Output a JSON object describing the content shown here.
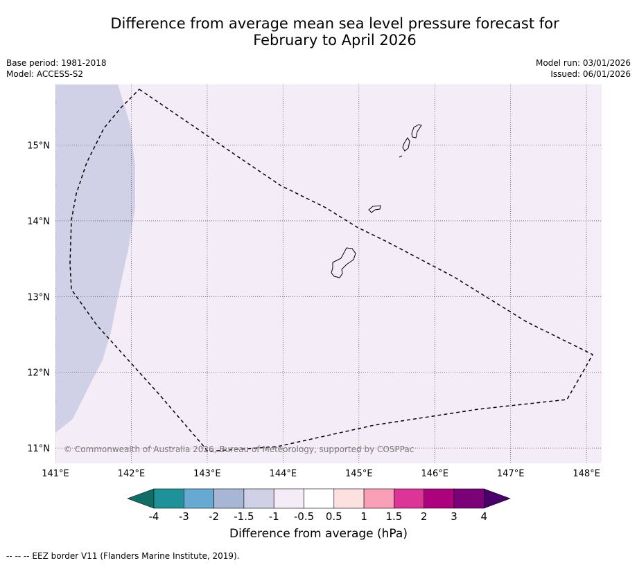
{
  "title": {
    "line1": "Difference from average mean sea level pressure forecast for",
    "line2": "February to April 2026"
  },
  "meta": {
    "base_period": "Base period: 1981-2018",
    "model": "Model: ACCESS-S2",
    "model_run": "Model run: 03/01/2026",
    "issued": "Issued: 06/01/2026"
  },
  "map": {
    "lon_range": [
      141,
      148.2
    ],
    "lat_range": [
      10.8,
      15.8
    ],
    "lon_ticks": [
      141,
      142,
      143,
      144,
      145,
      146,
      147,
      148
    ],
    "lon_tick_labels": [
      "141°E",
      "142°E",
      "143°E",
      "144°E",
      "145°E",
      "146°E",
      "147°E",
      "148°E"
    ],
    "lat_ticks": [
      11,
      12,
      13,
      14,
      15
    ],
    "lat_tick_labels": [
      "11°N",
      "12°N",
      "13°N",
      "14°N",
      "15°N"
    ],
    "background_category": "-0.5 to -1",
    "west_region_category": "-1 to -1.5",
    "copyright": "© Commonwealth of Australia 2026, Bureau of Meteorology, supported by COSPPac",
    "islands": [
      "Guam",
      "Rota",
      "Tinian",
      "Saipan"
    ]
  },
  "colorbar": {
    "label": "Difference from average (hPa)",
    "tick_labels": [
      "-4",
      "-3",
      "-2",
      "-1.5",
      "-1",
      "-0.5",
      "0.5",
      "1",
      "1.5",
      "2",
      "3",
      "4"
    ],
    "colors": [
      "#0f6e65",
      "#1e9298",
      "#67a9d0",
      "#a6b6d4",
      "#d0d1e6",
      "#f4ecf6",
      "#ffffff",
      "#fde0e0",
      "#f9a0b8",
      "#dd3497",
      "#ae017e",
      "#7a0177",
      "#49006a"
    ]
  },
  "footer": {
    "legend": "--  --  -- EEZ border V11 (Flanders Marine Institute, 2019)."
  }
}
